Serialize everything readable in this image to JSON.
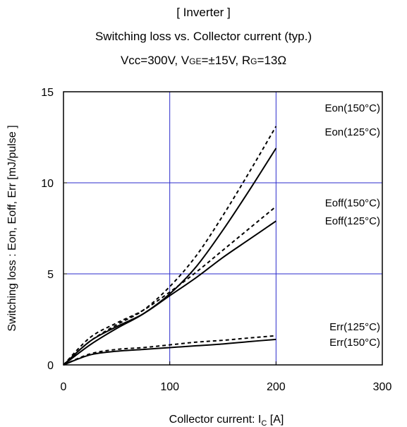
{
  "title": {
    "line1": "[ Inverter ]",
    "line2": "Switching loss  vs.  Collector current  (typ.)",
    "line3": {
      "vcc": "Vcc=300V, ",
      "vge_prefix": "V",
      "vge_sub": "GE",
      "vge_value": "=±15V, ",
      "rg_prefix": "R",
      "rg_sub": "G",
      "rg_value": "=13Ω"
    }
  },
  "colors": {
    "grid": "#2b2bcc",
    "curve": "#000000",
    "frame": "#000000"
  },
  "chart_data": {
    "type": "line",
    "xlim": [
      0,
      300
    ],
    "ylim": [
      0,
      15
    ],
    "x_ticks": [
      "0",
      "100",
      "200",
      "300"
    ],
    "y_ticks": [
      "0",
      "5",
      "10",
      "15"
    ],
    "xlabel": {
      "prefix": "Collector current: I",
      "sub": "C",
      "suffix": " [A]"
    },
    "ylabel": "Switching loss  : Eon, Eoff, Err  [mJ/pulse ]",
    "grid": true,
    "series": [
      {
        "name": "Eon(150°C)",
        "style": "dashed",
        "x": [
          0,
          25,
          50,
          75,
          100,
          125,
          150,
          175,
          200
        ],
        "y": [
          0,
          1.3,
          2.2,
          3.0,
          4.3,
          6.0,
          8.2,
          10.6,
          13.1
        ]
      },
      {
        "name": "Eon(125°C)",
        "style": "solid",
        "x": [
          0,
          25,
          50,
          75,
          100,
          125,
          150,
          175,
          200
        ],
        "y": [
          0,
          1.1,
          2.0,
          2.8,
          3.9,
          5.4,
          7.4,
          9.6,
          11.9
        ]
      },
      {
        "name": "Eoff(150°C)",
        "style": "dashed",
        "x": [
          0,
          25,
          50,
          75,
          100,
          125,
          150,
          175,
          200
        ],
        "y": [
          0,
          1.5,
          2.3,
          3.0,
          4.0,
          5.1,
          6.3,
          7.5,
          8.7
        ]
      },
      {
        "name": "Eoff(125°C)",
        "style": "solid",
        "x": [
          0,
          25,
          50,
          75,
          100,
          125,
          150,
          175,
          200
        ],
        "y": [
          0,
          1.3,
          2.1,
          2.8,
          3.8,
          4.8,
          5.9,
          6.9,
          7.9
        ]
      },
      {
        "name": "Err(125°C)",
        "style": "dashed",
        "x": [
          0,
          25,
          50,
          75,
          100,
          125,
          150,
          175,
          200
        ],
        "y": [
          0,
          0.6,
          0.85,
          0.95,
          1.1,
          1.25,
          1.35,
          1.48,
          1.6
        ]
      },
      {
        "name": "Err(150°C)",
        "style": "solid",
        "x": [
          0,
          25,
          50,
          75,
          100,
          125,
          150,
          175,
          200
        ],
        "y": [
          0,
          0.55,
          0.75,
          0.85,
          0.95,
          1.05,
          1.15,
          1.28,
          1.4
        ]
      }
    ],
    "labels": [
      {
        "series": "Eon(150°C)",
        "text": "Eon(150°C)",
        "y": 14.1
      },
      {
        "series": "Eon(125°C)",
        "text": "Eon(125°C)",
        "y": 12.8
      },
      {
        "series": "Eoff(150°C)",
        "text": "Eoff(150°C)",
        "y": 8.9
      },
      {
        "series": "Eoff(125°C)",
        "text": "Eoff(125°C)",
        "y": 7.9
      },
      {
        "series": "Err(125°C)",
        "text": "Err(125°C)",
        "y": 2.1
      },
      {
        "series": "Err(150°C)",
        "text": "Err(150°C)",
        "y": 1.25
      }
    ]
  }
}
